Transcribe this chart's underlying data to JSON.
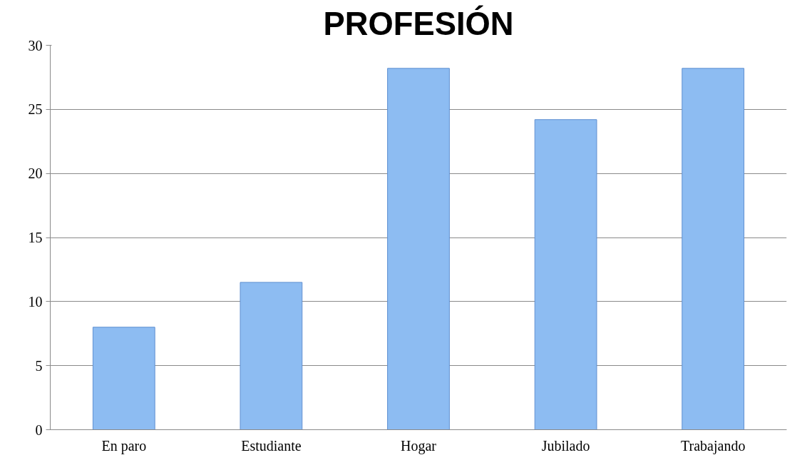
{
  "chart_data": {
    "type": "bar",
    "title": "PROFESIÓN",
    "categories": [
      "En paro",
      "Estudiante",
      "Hogar",
      "Jubilado",
      "Trabajando"
    ],
    "values": [
      8,
      11.5,
      28.2,
      24.2,
      28.2
    ],
    "color": "#8dbcf2",
    "ylim": [
      0,
      30
    ],
    "yticks": [
      0,
      5,
      10,
      15,
      20,
      25,
      30
    ],
    "grid": "y"
  }
}
